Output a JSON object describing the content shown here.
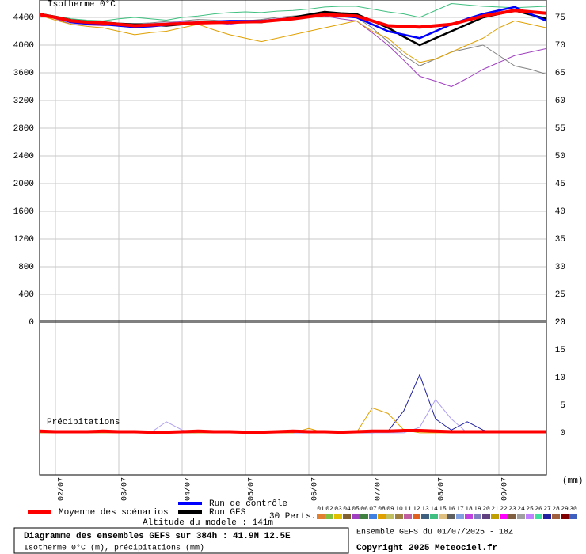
{
  "chart_data": [
    {
      "type": "line",
      "title": "Isotherme 0°C",
      "categories": [
        null,
        "02/07",
        null,
        null,
        null,
        "03/07",
        null,
        null,
        null,
        "04/07",
        null,
        null,
        null,
        "05/07",
        null,
        null,
        null,
        "06/07",
        null,
        null,
        null,
        "07/07",
        null,
        null,
        null,
        "08/07",
        null,
        null,
        null,
        "09/07",
        null,
        null,
        null
      ],
      "ylim": [
        0,
        4600
      ],
      "yticks": [
        0,
        400,
        800,
        1200,
        1600,
        2000,
        2400,
        2800,
        3200,
        3600,
        4000,
        4400
      ],
      "y2lim": [
        20,
        77.5
      ],
      "y2ticks": [
        20,
        25,
        30,
        35,
        40,
        45,
        50,
        55,
        60,
        65,
        70,
        75
      ],
      "grid": true,
      "series": [
        {
          "color": "#a040c0",
          "width": 1,
          "values": [
            4440,
            4380,
            4300,
            4290,
            4280,
            4290,
            4300,
            4310,
            4320,
            4340,
            4350,
            4320,
            4300,
            4330,
            4350,
            4380,
            4400,
            4410,
            4420,
            4380,
            4350,
            4180,
            4000,
            3780,
            3550,
            3480,
            3400,
            3520,
            3650,
            3750,
            3850,
            3900,
            3950
          ]
        },
        {
          "color": "#808080",
          "width": 1,
          "values": [
            4450,
            4390,
            4320,
            4300,
            4290,
            4300,
            4310,
            4320,
            4340,
            4350,
            4370,
            4360,
            4340,
            4350,
            4370,
            4400,
            4420,
            4440,
            4460,
            4430,
            4400,
            4250,
            4050,
            3850,
            3700,
            3800,
            3900,
            3950,
            4000,
            3850,
            3700,
            3650,
            3580
          ]
        },
        {
          "color": "#e0a000",
          "width": 1,
          "values": [
            4430,
            4360,
            4300,
            4270,
            4250,
            4200,
            4150,
            4180,
            4200,
            4250,
            4300,
            4220,
            4150,
            4100,
            4050,
            4100,
            4150,
            4200,
            4250,
            4300,
            4350,
            4200,
            4100,
            3900,
            3750,
            3800,
            3900,
            4000,
            4100,
            4250,
            4350,
            4300,
            4250
          ]
        },
        {
          "color": "#40c080",
          "width": 1,
          "values": [
            4460,
            4420,
            4380,
            4360,
            4350,
            4380,
            4400,
            4380,
            4360,
            4400,
            4420,
            4450,
            4470,
            4480,
            4470,
            4490,
            4500,
            4520,
            4550,
            4560,
            4560,
            4520,
            4480,
            4450,
            4400,
            4500,
            4600,
            4580,
            4560,
            4550,
            4540,
            4550,
            4560
          ]
        },
        {
          "name": "Run GFS",
          "color": "#000000",
          "width": 2.5,
          "values": [
            4450,
            4410,
            4360,
            4340,
            4330,
            4310,
            4300,
            4290,
            4280,
            4300,
            4320,
            4330,
            4340,
            4335,
            4330,
            4360,
            4400,
            4440,
            4480,
            4460,
            4450,
            4350,
            4250,
            4120,
            4000,
            4100,
            4200,
            4300,
            4400,
            4450,
            4500,
            4440,
            4380
          ]
        },
        {
          "name": "Run de contrôle",
          "color": "#0000ff",
          "width": 2.5,
          "values": [
            4440,
            4400,
            4330,
            4310,
            4300,
            4280,
            4260,
            4270,
            4290,
            4310,
            4330,
            4340,
            4350,
            4350,
            4350,
            4370,
            4380,
            4410,
            4440,
            4420,
            4400,
            4300,
            4200,
            4150,
            4100,
            4200,
            4300,
            4380,
            4450,
            4500,
            4550,
            4450,
            4350
          ]
        },
        {
          "name": "Moyenne des scénarios",
          "color": "#ff0000",
          "width": 4,
          "values": [
            4440,
            4400,
            4350,
            4330,
            4320,
            4300,
            4280,
            4290,
            4300,
            4310,
            4320,
            4325,
            4330,
            4335,
            4340,
            4360,
            4380,
            4410,
            4440,
            4430,
            4420,
            4350,
            4280,
            4270,
            4260,
            4280,
            4300,
            4360,
            4420,
            4460,
            4500,
            4480,
            4460
          ]
        }
      ]
    },
    {
      "type": "line",
      "title": "Précipitations",
      "unit": "(mm)",
      "y_axis_position": "right",
      "ylim": [
        -7.6,
        20
      ],
      "yticks": [
        0,
        5,
        10,
        15,
        20
      ],
      "grid": false,
      "series": [
        {
          "color": "#2020a0",
          "width": 1,
          "values": [
            0,
            0,
            0,
            0,
            0,
            0,
            0,
            0,
            0,
            0,
            0,
            0,
            0,
            0,
            0,
            0,
            0,
            0,
            0,
            0,
            0,
            0,
            0.3,
            4,
            10.5,
            2.5,
            0.5,
            2,
            0.5,
            0,
            0,
            0,
            0
          ]
        },
        {
          "color": "#b0a0f0",
          "width": 1,
          "values": [
            0,
            0,
            0,
            0,
            0,
            0,
            0,
            0,
            2,
            0.5,
            0,
            0,
            0,
            0,
            0,
            0,
            0,
            0,
            0,
            0,
            0,
            0,
            0,
            0,
            1,
            6,
            2.5,
            0,
            0,
            0,
            0,
            0,
            0
          ]
        },
        {
          "color": "#e0a000",
          "width": 1,
          "values": [
            0,
            0,
            0,
            0,
            0,
            0,
            0,
            0,
            0,
            0,
            0,
            0,
            0,
            0,
            0,
            0,
            0,
            0.8,
            0,
            0,
            0,
            4.5,
            3.5,
            0.5,
            0,
            0,
            0,
            0,
            0,
            0,
            0,
            0,
            0
          ]
        },
        {
          "color": "#ff0000",
          "width": 4,
          "values": [
            0.3,
            0.2,
            0.2,
            0.2,
            0.3,
            0.2,
            0.2,
            0.1,
            0.1,
            0.2,
            0.3,
            0.2,
            0.2,
            0.1,
            0.1,
            0.2,
            0.3,
            0.2,
            0.2,
            0.1,
            0.2,
            0.3,
            0.3,
            0.4,
            0.4,
            0.3,
            0.2,
            0.2,
            0.2,
            0.2,
            0.2,
            0.2,
            0.2
          ]
        }
      ]
    }
  ],
  "perturbations": {
    "title": "30 Perts.",
    "labels": [
      "01",
      "02",
      "03",
      "04",
      "05",
      "06",
      "07",
      "08",
      "09",
      "10",
      "11",
      "12",
      "13",
      "14",
      "15",
      "16",
      "17",
      "18",
      "19",
      "20",
      "21",
      "22",
      "23",
      "24",
      "25",
      "26",
      "27",
      "28",
      "29",
      "30"
    ],
    "colors": [
      "#e08030",
      "#80c040",
      "#e0c000",
      "#806030",
      "#a040c0",
      "#408040",
      "#4080e0",
      "#e0a000",
      "#c0c060",
      "#a08040",
      "#c060a0",
      "#e06020",
      "#406080",
      "#40c080",
      "#e0c080",
      "#606060",
      "#80a0e0",
      "#c040e0",
      "#8080c0",
      "#604080",
      "#c0a000",
      "#ff00ff",
      "#806040",
      "#a0a0a0",
      "#c080ff",
      "#40e0a0",
      "#2020a0",
      "#a06040",
      "#800000",
      "#4060c0"
    ]
  },
  "footer": {
    "altitude": "Altitude du modele : 141m",
    "title": "Diagramme des ensembles GEFS sur 384h : 41.9N 12.5E",
    "subtitle": "Isotherme 0°C (m), précipitations (mm)",
    "run": "Ensemble GEFS du 01/07/2025 - 18Z",
    "copyright": "Copyright 2025 Meteociel.fr"
  }
}
